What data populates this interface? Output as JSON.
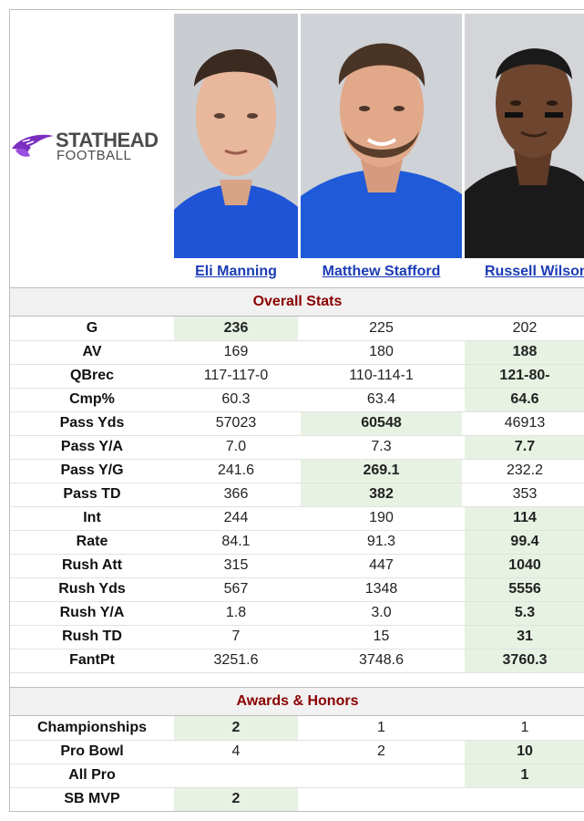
{
  "logo": {
    "line1": "STATHEAD",
    "line2": "FOOTBALL"
  },
  "players": [
    {
      "name": "Eli Manning",
      "jersey_color": "#1f54d6",
      "skin": "#e8b79c",
      "hair": "#3b2a20"
    },
    {
      "name": "Matthew Stafford",
      "jersey_color": "#1f5ad8",
      "skin": "#e1a98a",
      "hair": "#4a3425"
    },
    {
      "name": "Russell Wilson",
      "jersey_color": "#1a1a1a",
      "skin": "#6e4630",
      "hair": "#1a1a1a"
    }
  ],
  "sections": [
    {
      "title": "Overall Stats",
      "rows": [
        {
          "label": "G",
          "values": [
            "236",
            "225",
            "202"
          ],
          "best": [
            0
          ]
        },
        {
          "label": "AV",
          "values": [
            "169",
            "180",
            "188"
          ],
          "best": [
            2
          ]
        },
        {
          "label": "QBrec",
          "values": [
            "117-117-0",
            "110-114-1",
            "121-80-"
          ],
          "best": [
            2
          ]
        },
        {
          "label": "Cmp%",
          "values": [
            "60.3",
            "63.4",
            "64.6"
          ],
          "best": [
            2
          ]
        },
        {
          "label": "Pass Yds",
          "values": [
            "57023",
            "60548",
            "46913"
          ],
          "best": [
            1
          ]
        },
        {
          "label": "Pass Y/A",
          "values": [
            "7.0",
            "7.3",
            "7.7"
          ],
          "best": [
            2
          ]
        },
        {
          "label": "Pass Y/G",
          "values": [
            "241.6",
            "269.1",
            "232.2"
          ],
          "best": [
            1
          ]
        },
        {
          "label": "Pass TD",
          "values": [
            "366",
            "382",
            "353"
          ],
          "best": [
            1
          ]
        },
        {
          "label": "Int",
          "values": [
            "244",
            "190",
            "114"
          ],
          "best": [
            2
          ]
        },
        {
          "label": "Rate",
          "values": [
            "84.1",
            "91.3",
            "99.4"
          ],
          "best": [
            2
          ]
        },
        {
          "label": "Rush Att",
          "values": [
            "315",
            "447",
            "1040"
          ],
          "best": [
            2
          ]
        },
        {
          "label": "Rush Yds",
          "values": [
            "567",
            "1348",
            "5556"
          ],
          "best": [
            2
          ]
        },
        {
          "label": "Rush Y/A",
          "values": [
            "1.8",
            "3.0",
            "5.3"
          ],
          "best": [
            2
          ]
        },
        {
          "label": "Rush TD",
          "values": [
            "7",
            "15",
            "31"
          ],
          "best": [
            2
          ]
        },
        {
          "label": "FantPt",
          "values": [
            "3251.6",
            "3748.6",
            "3760.3"
          ],
          "best": [
            2
          ]
        }
      ]
    },
    {
      "title": "Awards & Honors",
      "rows": [
        {
          "label": "Championships",
          "values": [
            "2",
            "1",
            "1"
          ],
          "best": [
            0
          ]
        },
        {
          "label": "Pro Bowl",
          "values": [
            "4",
            "2",
            "10"
          ],
          "best": [
            2
          ]
        },
        {
          "label": "All Pro",
          "values": [
            "",
            "",
            "1"
          ],
          "best": [
            2
          ]
        },
        {
          "label": "SB MVP",
          "values": [
            "2",
            "",
            ""
          ],
          "best": [
            0
          ]
        }
      ]
    }
  ]
}
